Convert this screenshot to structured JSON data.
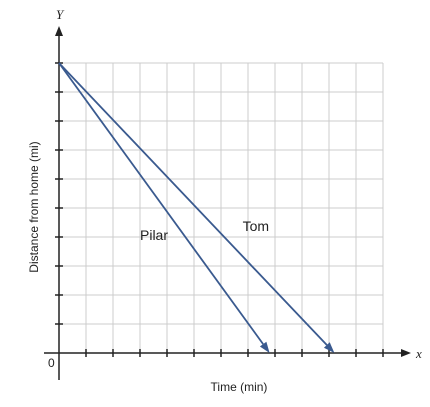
{
  "chart_data": {
    "type": "line",
    "xlabel": "Time (min)",
    "ylabel": "Distance from home (mi)",
    "x_axis_name": "x",
    "y_axis_name": "Y",
    "origin_label": "0",
    "xlim": [
      0,
      12
    ],
    "ylim": [
      0,
      10
    ],
    "grid": true,
    "series": [
      {
        "name": "Pilar",
        "x": [
          0,
          7.8
        ],
        "y": [
          10,
          0
        ],
        "label_pos": [
          3.0,
          3.9
        ]
      },
      {
        "name": "Tom",
        "x": [
          0,
          10.2
        ],
        "y": [
          10,
          0
        ],
        "label_pos": [
          6.8,
          4.2
        ]
      }
    ],
    "colors": {
      "line": "#3a5a8f",
      "grid": "#cccccc",
      "axis": "#222222"
    }
  }
}
